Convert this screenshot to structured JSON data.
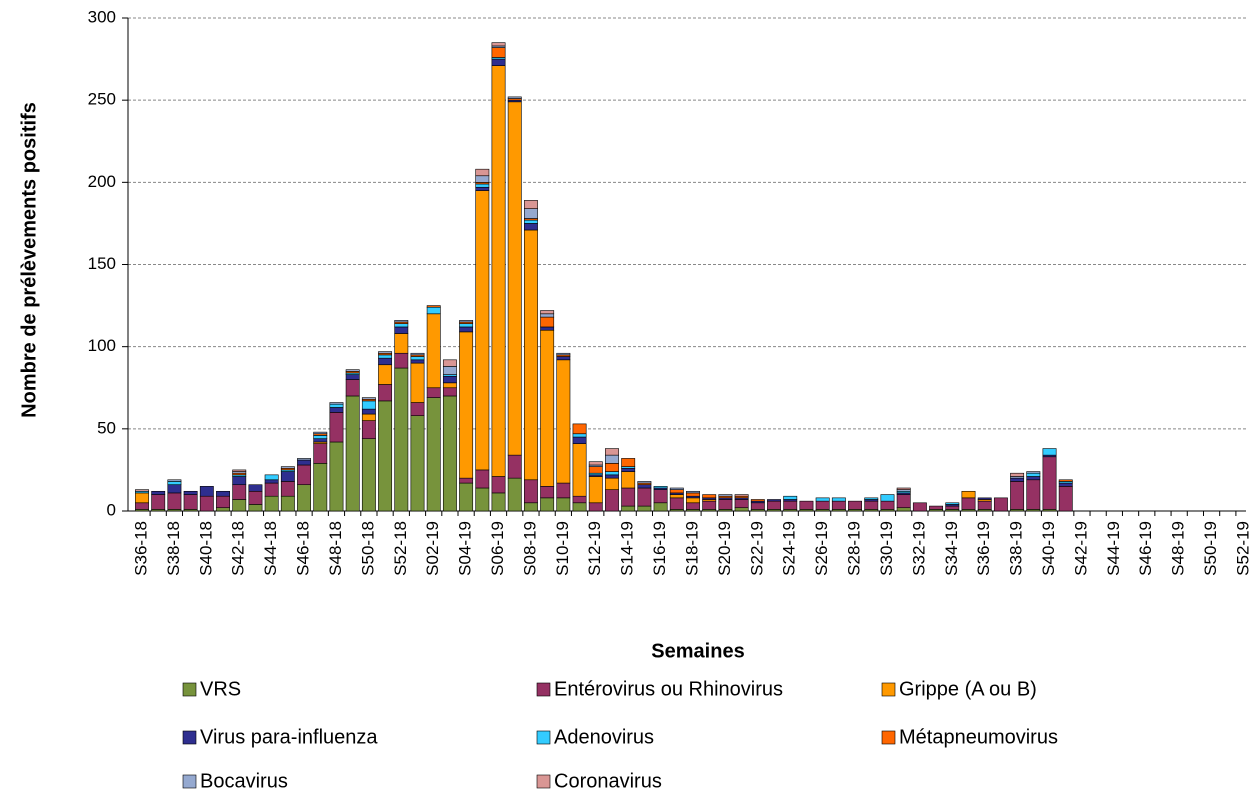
{
  "chart_data": {
    "type": "stacked_bar",
    "y_label": "Nombre de prélèvements positifs",
    "x_label": "Semaines",
    "categories": [
      "S36-18",
      null,
      "S38-18",
      null,
      "S40-18",
      null,
      "S42-18",
      null,
      "S44-18",
      null,
      "S46-18",
      null,
      "S48-18",
      null,
      "S50-18",
      null,
      "S52-18",
      null,
      "S02-19",
      null,
      "S04-19",
      null,
      "S06-19",
      null,
      "S08-19",
      null,
      "S10-19",
      null,
      "S12-19",
      null,
      "S14-19",
      null,
      "S16-19",
      null,
      "S18-19",
      null,
      "S20-19",
      null,
      "S22-19",
      null,
      "S24-19",
      null,
      "S26-19",
      null,
      "S28-19",
      null,
      "S30-19",
      null,
      "S32-19",
      null,
      "S34-19",
      null,
      "S36-19",
      null,
      "S38-19",
      null,
      "S40-19",
      null,
      "S42-19",
      null,
      "S44-19",
      null,
      "S46-19",
      null,
      "S48-19",
      null,
      "S50-19",
      null,
      "S52-19"
    ],
    "series": [
      {
        "name": "VRS",
        "color": "#77933c",
        "values": [
          1,
          1,
          1,
          1,
          0,
          2,
          7,
          4,
          9,
          9,
          16,
          29,
          42,
          70,
          44,
          67,
          87,
          58,
          69,
          70,
          17,
          14,
          11,
          20,
          5,
          8,
          8,
          5,
          0,
          0,
          3,
          3,
          5,
          1,
          1,
          1,
          1,
          2,
          1,
          1,
          1,
          1,
          1,
          1,
          1,
          1,
          1,
          2,
          0,
          1,
          1,
          1,
          1,
          0,
          1,
          1,
          1,
          0,
          0,
          0,
          0,
          0,
          0,
          0,
          0,
          0,
          0,
          0,
          0
        ]
      },
      {
        "name": "Entérovirus ou Rhinovirus",
        "color": "#953163",
        "values": [
          4,
          9,
          10,
          9,
          9,
          7,
          9,
          8,
          8,
          9,
          12,
          12,
          18,
          10,
          11,
          10,
          9,
          8,
          6,
          5,
          3,
          11,
          10,
          14,
          14,
          7,
          9,
          4,
          5,
          13,
          11,
          11,
          8,
          7,
          4,
          5,
          6,
          5,
          4,
          5,
          5,
          5,
          5,
          5,
          5,
          5,
          5,
          8,
          5,
          2,
          2,
          7,
          5,
          8,
          17,
          18,
          32,
          15,
          0,
          0,
          0,
          0,
          0,
          0,
          0,
          0,
          0,
          0,
          0
        ]
      },
      {
        "name": "Grippe (A ou B)",
        "color": "#ff9900",
        "values": [
          6,
          0,
          0,
          0,
          0,
          0,
          0,
          0,
          0,
          0,
          0,
          1,
          0,
          0,
          4,
          12,
          12,
          24,
          45,
          3,
          89,
          170,
          250,
          215,
          152,
          95,
          75,
          32,
          16,
          7,
          10,
          0,
          0,
          2,
          3,
          1,
          0,
          0,
          0,
          0,
          0,
          0,
          0,
          0,
          0,
          0,
          0,
          0,
          0,
          0,
          0,
          4,
          1,
          0,
          0,
          0,
          0,
          0,
          0,
          0,
          0,
          0,
          0,
          0,
          0,
          0,
          0,
          0,
          0
        ]
      },
      {
        "name": "Virus para-influenza",
        "color": "#2e2e8f",
        "values": [
          0,
          2,
          5,
          2,
          6,
          3,
          5,
          4,
          2,
          6,
          3,
          2,
          3,
          3,
          3,
          4,
          4,
          2,
          0,
          4,
          3,
          2,
          4,
          1,
          4,
          2,
          2,
          4,
          1,
          2,
          2,
          2,
          1,
          1,
          1,
          1,
          1,
          1,
          1,
          1,
          1,
          0,
          0,
          0,
          0,
          1,
          0,
          1,
          0,
          0,
          1,
          0,
          1,
          0,
          2,
          2,
          1,
          2,
          0,
          0,
          0,
          0,
          0,
          0,
          0,
          0,
          0,
          0,
          0
        ]
      },
      {
        "name": "Adenovirus",
        "color": "#33ccff",
        "values": [
          1,
          0,
          2,
          0,
          0,
          0,
          1,
          0,
          3,
          1,
          0,
          2,
          2,
          1,
          5,
          2,
          2,
          2,
          4,
          1,
          2,
          2,
          1,
          0,
          2,
          0,
          0,
          2,
          1,
          2,
          1,
          0,
          1,
          0,
          0,
          0,
          0,
          0,
          0,
          0,
          2,
          0,
          2,
          2,
          0,
          1,
          4,
          1,
          0,
          0,
          1,
          0,
          0,
          0,
          0,
          2,
          4,
          1,
          0,
          0,
          0,
          0,
          0,
          0,
          0,
          0,
          0,
          0,
          0
        ]
      },
      {
        "name": "Métapneumovirus",
        "color": "#ff6600",
        "values": [
          0,
          0,
          0,
          0,
          0,
          0,
          1,
          0,
          0,
          1,
          0,
          1,
          0,
          1,
          1,
          1,
          1,
          1,
          1,
          0,
          1,
          1,
          6,
          1,
          1,
          6,
          1,
          6,
          4,
          5,
          5,
          1,
          0,
          2,
          2,
          2,
          1,
          1,
          1,
          0,
          0,
          0,
          0,
          0,
          0,
          0,
          0,
          0,
          0,
          0,
          0,
          0,
          0,
          0,
          0,
          0,
          0,
          1,
          0,
          0,
          0,
          0,
          0,
          0,
          0,
          0,
          0,
          0,
          0
        ]
      },
      {
        "name": "Bocavirus",
        "color": "#95a9d0",
        "values": [
          0,
          0,
          1,
          0,
          0,
          0,
          1,
          0,
          0,
          1,
          1,
          1,
          1,
          1,
          1,
          1,
          1,
          1,
          0,
          5,
          1,
          4,
          1,
          1,
          6,
          2,
          1,
          0,
          1,
          5,
          0,
          1,
          0,
          1,
          1,
          0,
          1,
          0,
          0,
          0,
          0,
          0,
          0,
          0,
          0,
          0,
          0,
          1,
          0,
          0,
          0,
          0,
          0,
          0,
          1,
          1,
          0,
          0,
          0,
          0,
          0,
          0,
          0,
          0,
          0,
          0,
          0,
          0,
          0
        ]
      },
      {
        "name": "Coronavirus",
        "color": "#d99694",
        "values": [
          1,
          0,
          0,
          0,
          0,
          0,
          1,
          0,
          0,
          0,
          0,
          0,
          0,
          0,
          0,
          0,
          0,
          0,
          0,
          4,
          0,
          4,
          2,
          0,
          5,
          2,
          0,
          0,
          2,
          4,
          0,
          0,
          0,
          0,
          0,
          0,
          0,
          1,
          0,
          0,
          0,
          0,
          0,
          0,
          0,
          0,
          0,
          1,
          0,
          0,
          0,
          0,
          0,
          0,
          2,
          0,
          0,
          0,
          0,
          0,
          0,
          0,
          0,
          0,
          0,
          0,
          0,
          0,
          0
        ]
      }
    ],
    "ylim": [
      0,
      300
    ],
    "yticks": [
      0,
      50,
      100,
      150,
      200,
      250,
      300
    ],
    "grid": true
  }
}
